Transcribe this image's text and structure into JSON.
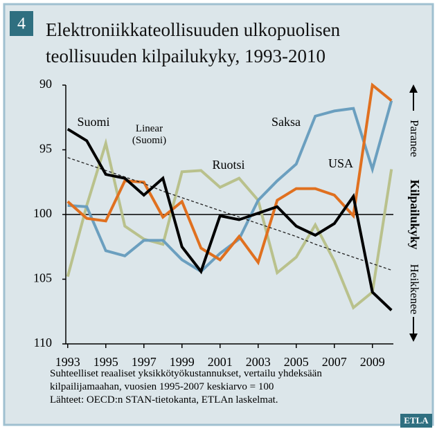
{
  "chart_data": {
    "type": "line",
    "badge": "4",
    "title": [
      "Elektroniikkateollisuuden ulkopuolisen",
      "teollisuuden kilpailukyky, 1993-2010"
    ],
    "x": [
      1993,
      1994,
      1995,
      1996,
      1997,
      1998,
      1999,
      2000,
      2001,
      2002,
      2003,
      2004,
      2005,
      2006,
      2007,
      2008,
      2009,
      2010
    ],
    "xlim": [
      1992.9,
      2010.1
    ],
    "xticks": [
      1993,
      1995,
      1997,
      1999,
      2001,
      2003,
      2005,
      2007,
      2009
    ],
    "ylim": [
      90,
      110
    ],
    "y_inverted": true,
    "yticks": [
      90,
      95,
      100,
      105,
      110
    ],
    "reference_line": 100,
    "grid": false,
    "series": [
      {
        "name": "Ruotsi",
        "color": "#b9c18c",
        "values": [
          104.8,
          99.3,
          94.5,
          100.9,
          101.9,
          102.3,
          96.7,
          96.6,
          97.9,
          97.2,
          98.9,
          104.5,
          103.3,
          100.8,
          103.6,
          107.2,
          106.0,
          96.5
        ]
      },
      {
        "name": "Saksa",
        "color": "#6b9fbf",
        "values": [
          99.3,
          99.4,
          102.8,
          103.2,
          102.0,
          102.0,
          103.5,
          104.4,
          103.0,
          101.9,
          98.9,
          97.4,
          96.1,
          92.4,
          92.0,
          91.8,
          96.5,
          91.2
        ]
      },
      {
        "name": "USA",
        "color": "#e0701f",
        "values": [
          99.0,
          100.3,
          100.5,
          97.4,
          97.5,
          100.2,
          99.0,
          102.6,
          103.5,
          101.7,
          103.7,
          98.9,
          98.0,
          98.0,
          98.5,
          100.1,
          90.0,
          91.2
        ]
      },
      {
        "name": "Linear (Suomi)",
        "color": "#222222",
        "dashed": true,
        "values": [
          95.6,
          96.1,
          96.6,
          97.1,
          97.6,
          98.2,
          98.7,
          99.2,
          99.7,
          100.2,
          100.7,
          101.2,
          101.7,
          102.3,
          102.8,
          103.3,
          103.8,
          104.3
        ]
      },
      {
        "name": "Suomi",
        "color": "#000000",
        "values": [
          93.4,
          94.3,
          96.9,
          97.2,
          98.5,
          97.2,
          102.5,
          104.4,
          100.1,
          100.4,
          99.9,
          99.4,
          100.9,
          101.6,
          100.7,
          98.6,
          106.0,
          107.4
        ]
      }
    ],
    "side_label": {
      "top": "Paranee",
      "middle": "Kilpailukyky",
      "bottom": "Heikkenee"
    },
    "notes": [
      "Suhteelliset reaaliset yksikkötyökustannukset, vertailu yhdeksään",
      "kilpailijamaahan, vuosien 1995-2007 keskiarvo = 100",
      "Lähteet: OECD:n STAN-tietokanta, ETLAn laskelmat."
    ],
    "logo": "ETLA"
  }
}
